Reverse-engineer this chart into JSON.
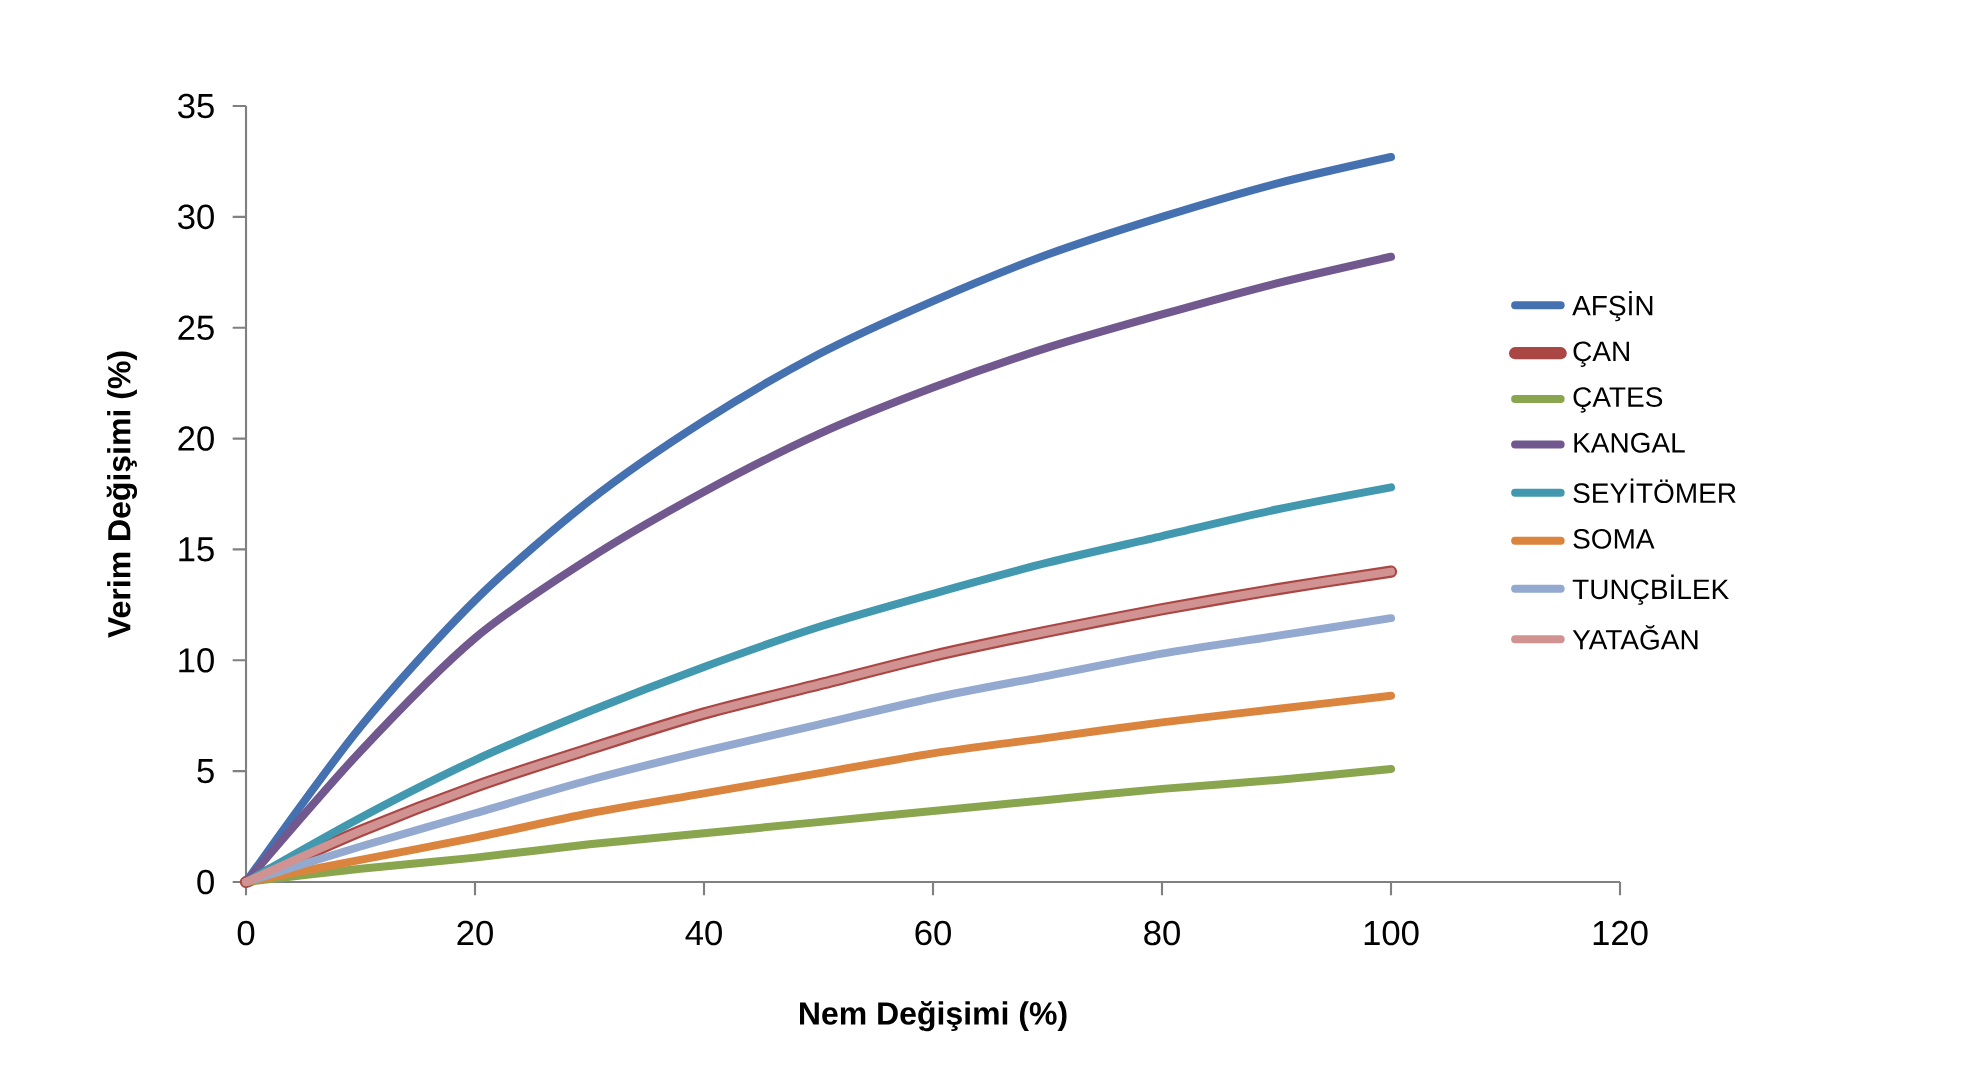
{
  "chart_data": {
    "type": "line",
    "xlabel": "Nem Değişimi (%)",
    "ylabel": "Verim Değişimi (%)",
    "x": [
      0,
      10,
      20,
      30,
      40,
      50,
      60,
      70,
      80,
      90,
      100
    ],
    "series": [
      {
        "name": "AFŞİN",
        "color": "#4571b0",
        "values": [
          0,
          7.0,
          12.7,
          17.2,
          20.8,
          23.8,
          26.2,
          28.3,
          30.0,
          31.5,
          32.7
        ]
      },
      {
        "name": "ÇAN",
        "color": "#aa4643",
        "values": [
          0,
          2.3,
          4.3,
          6.0,
          7.6,
          8.9,
          10.2,
          11.3,
          12.3,
          13.2,
          14.0
        ]
      },
      {
        "name": "ÇATES",
        "color": "#89a54e",
        "values": [
          0,
          0.6,
          1.1,
          1.7,
          2.2,
          2.7,
          3.2,
          3.7,
          4.2,
          4.6,
          5.1
        ]
      },
      {
        "name": "KANGAL",
        "color": "#71588f",
        "values": [
          0,
          5.9,
          11.0,
          14.6,
          17.6,
          20.2,
          22.3,
          24.1,
          25.6,
          27.0,
          28.2
        ]
      },
      {
        "name": "SEYİTÖMER",
        "color": "#4198af",
        "values": [
          0,
          2.9,
          5.5,
          7.7,
          9.7,
          11.5,
          13.0,
          14.4,
          15.6,
          16.8,
          17.8
        ]
      },
      {
        "name": "SOMA",
        "color": "#db843d",
        "values": [
          0,
          1.0,
          2.0,
          3.1,
          4.0,
          4.9,
          5.8,
          6.5,
          7.2,
          7.8,
          8.4
        ]
      },
      {
        "name": "TUNÇBİLEK",
        "color": "#93a9cf",
        "values": [
          0,
          1.6,
          3.1,
          4.6,
          5.9,
          7.1,
          8.3,
          9.3,
          10.3,
          11.1,
          11.9
        ]
      },
      {
        "name": "YATAĞAN",
        "color": "#d19392",
        "values": [
          0,
          2.3,
          4.3,
          6.0,
          7.6,
          8.9,
          10.2,
          11.3,
          12.3,
          13.2,
          14.0
        ]
      }
    ],
    "xlim": [
      0,
      120
    ],
    "xticks": [
      0,
      20,
      40,
      60,
      80,
      100,
      120
    ],
    "ylim": [
      0,
      35
    ],
    "yticks": [
      0,
      5,
      10,
      15,
      20,
      25,
      30,
      35
    ],
    "grid": false,
    "legend": "right",
    "marker": "none",
    "line_style": "solid"
  }
}
